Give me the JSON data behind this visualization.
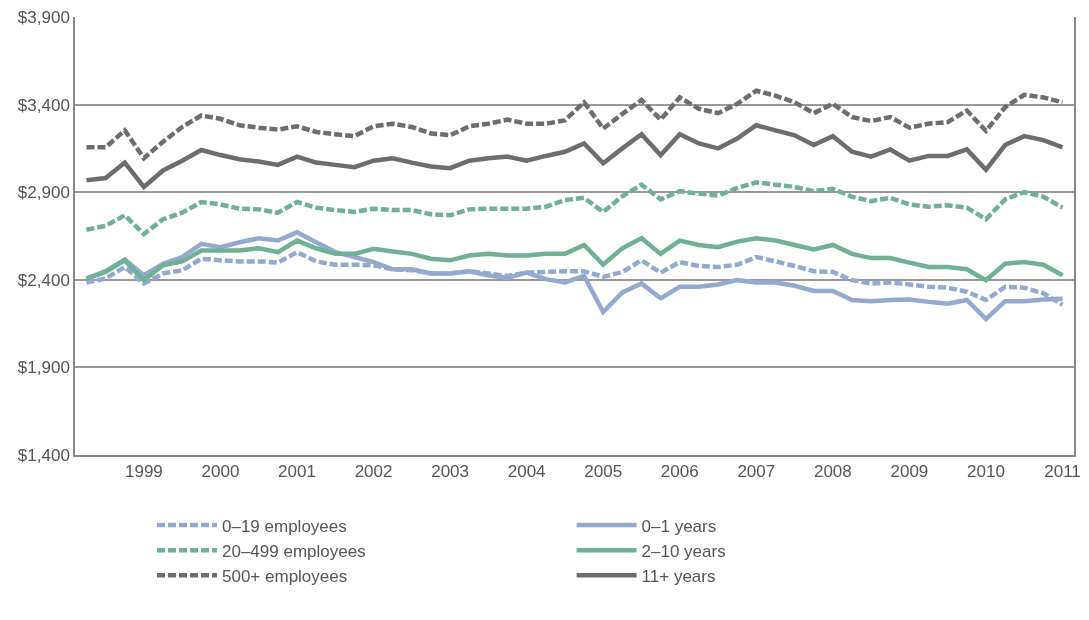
{
  "chart_data": {
    "type": "line",
    "x": [
      1998.25,
      1998.5,
      1998.75,
      1999,
      1999.25,
      1999.5,
      1999.75,
      2000,
      2000.25,
      2000.5,
      2000.75,
      2001,
      2001.25,
      2001.5,
      2001.75,
      2002,
      2002.25,
      2002.5,
      2002.75,
      2003,
      2003.25,
      2003.5,
      2003.75,
      2004,
      2004.25,
      2004.5,
      2004.75,
      2005,
      2005.25,
      2005.5,
      2005.75,
      2006,
      2006.25,
      2006.5,
      2006.75,
      2007,
      2007.25,
      2007.5,
      2007.75,
      2008,
      2008.25,
      2008.5,
      2008.75,
      2009,
      2009.25,
      2009.5,
      2009.75,
      2010,
      2010.25,
      2010.5,
      2010.75,
      2011
    ],
    "xlim": [
      1998.1,
      2011.15
    ],
    "xticks": [
      1999,
      2000,
      2001,
      2002,
      2003,
      2004,
      2005,
      2006,
      2007,
      2008,
      2009,
      2010,
      2011
    ],
    "ylim": [
      1400,
      3900
    ],
    "yticks": [
      {
        "value": 1400,
        "label": "$1,400"
      },
      {
        "value": 1900,
        "label": "$1,900"
      },
      {
        "value": 2400,
        "label": "$2,400"
      },
      {
        "value": 2900,
        "label": "$2,900"
      },
      {
        "value": 3400,
        "label": "$3,400"
      },
      {
        "value": 3900,
        "label": "$3,900"
      }
    ],
    "grid": "y",
    "legend": "bottom",
    "marker": "none",
    "series": [
      {
        "name": "0–19 employees",
        "color": "#94a9cf",
        "line_style": "dashed",
        "values": [
          2385,
          2407,
          2473,
          2379,
          2436,
          2454,
          2520,
          2511,
          2505,
          2505,
          2498,
          2558,
          2505,
          2486,
          2486,
          2483,
          2460,
          2455,
          2436,
          2436,
          2449,
          2436,
          2422,
          2441,
          2445,
          2449,
          2449,
          2417,
          2445,
          2511,
          2441,
          2501,
          2479,
          2473,
          2486,
          2530,
          2505,
          2479,
          2449,
          2445,
          2398,
          2379,
          2385,
          2373,
          2360,
          2355,
          2332,
          2285,
          2360,
          2355,
          2323,
          2257
        ]
      },
      {
        "name": "0–1 years",
        "color": "#94a9cf",
        "line_style": "solid",
        "values": [
          2407,
          2449,
          2516,
          2426,
          2492,
          2530,
          2605,
          2586,
          2614,
          2637,
          2624,
          2671,
          2614,
          2558,
          2530,
          2501,
          2460,
          2460,
          2436,
          2436,
          2449,
          2426,
          2411,
          2441,
          2404,
          2385,
          2422,
          2216,
          2328,
          2379,
          2294,
          2360,
          2360,
          2373,
          2398,
          2385,
          2385,
          2366,
          2336,
          2336,
          2285,
          2278,
          2285,
          2287,
          2274,
          2264,
          2285,
          2176,
          2278,
          2278,
          2287,
          2292
        ]
      },
      {
        "name": "20–499 employees",
        "color": "#70b095",
        "line_style": "dashed",
        "values": [
          2686,
          2708,
          2768,
          2661,
          2746,
          2783,
          2844,
          2830,
          2806,
          2802,
          2783,
          2844,
          2812,
          2798,
          2787,
          2806,
          2798,
          2798,
          2774,
          2768,
          2802,
          2806,
          2806,
          2806,
          2817,
          2855,
          2868,
          2787,
          2877,
          2943,
          2859,
          2906,
          2892,
          2881,
          2924,
          2956,
          2943,
          2930,
          2906,
          2919,
          2874,
          2849,
          2868,
          2830,
          2817,
          2825,
          2812,
          2746,
          2859,
          2900,
          2874,
          2812
        ]
      },
      {
        "name": "2–10 years",
        "color": "#70b095",
        "line_style": "solid",
        "values": [
          2407,
          2445,
          2511,
          2398,
          2483,
          2505,
          2567,
          2567,
          2567,
          2580,
          2558,
          2624,
          2580,
          2548,
          2548,
          2577,
          2562,
          2548,
          2520,
          2511,
          2539,
          2548,
          2539,
          2539,
          2548,
          2548,
          2599,
          2487,
          2580,
          2637,
          2548,
          2624,
          2599,
          2586,
          2618,
          2637,
          2624,
          2599,
          2573,
          2599,
          2548,
          2524,
          2524,
          2498,
          2473,
          2473,
          2460,
          2398,
          2492,
          2501,
          2486,
          2426
        ]
      },
      {
        "name": "500+ employees",
        "color": "#6d6d6e",
        "line_style": "dashed",
        "values": [
          3156,
          3156,
          3253,
          3094,
          3188,
          3272,
          3338,
          3319,
          3282,
          3268,
          3257,
          3276,
          3244,
          3231,
          3220,
          3276,
          3291,
          3272,
          3235,
          3225,
          3276,
          3291,
          3314,
          3291,
          3291,
          3310,
          3413,
          3263,
          3347,
          3426,
          3314,
          3441,
          3376,
          3351,
          3404,
          3479,
          3451,
          3413,
          3351,
          3404,
          3329,
          3306,
          3329,
          3268,
          3291,
          3300,
          3366,
          3250,
          3385,
          3456,
          3441,
          3413
        ]
      },
      {
        "name": "11+ years",
        "color": "#6d6d6e",
        "line_style": "solid",
        "values": [
          2968,
          2981,
          3069,
          2930,
          3024,
          3080,
          3141,
          3112,
          3088,
          3075,
          3056,
          3103,
          3069,
          3056,
          3043,
          3080,
          3094,
          3069,
          3047,
          3037,
          3080,
          3094,
          3103,
          3080,
          3107,
          3131,
          3178,
          3065,
          3150,
          3231,
          3112,
          3231,
          3178,
          3150,
          3206,
          3282,
          3253,
          3225,
          3169,
          3220,
          3131,
          3103,
          3144,
          3080,
          3107,
          3107,
          3144,
          3028,
          3169,
          3220,
          3197,
          3156
        ]
      }
    ]
  }
}
